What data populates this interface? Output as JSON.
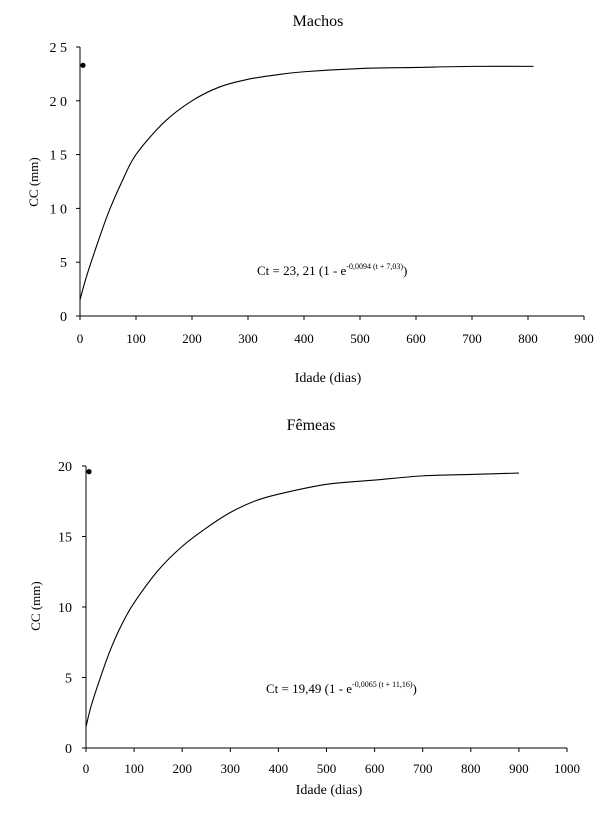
{
  "chart_data": [
    {
      "type": "line",
      "title": "Machos",
      "xlabel": "Idade (dias)",
      "ylabel": "CC (mm)",
      "xlim": [
        0,
        900
      ],
      "ylim": [
        0,
        25
      ],
      "x_ticks": [
        0,
        100,
        200,
        300,
        400,
        500,
        600,
        700,
        800,
        900
      ],
      "y_ticks": [
        0,
        5,
        10,
        15,
        20,
        25
      ],
      "x_tick_labels": [
        "0",
        "100",
        "200",
        "300",
        "400",
        "500",
        "600",
        "700",
        "800",
        "900"
      ],
      "y_tick_labels": [
        "0",
        "5",
        "1 0",
        "1 5",
        "2 0",
        "2 5"
      ],
      "grid": false,
      "series": [
        {
          "x": [
            0,
            10,
            25,
            50,
            75,
            100,
            150,
            200,
            250,
            300,
            350,
            400,
            500,
            600,
            700,
            810
          ],
          "y": [
            1.5,
            3.4,
            5.8,
            9.5,
            12.5,
            15.0,
            18.0,
            20.0,
            21.3,
            22.0,
            22.4,
            22.7,
            23.0,
            23.1,
            23.2,
            23.2
          ]
        }
      ],
      "points": [
        {
          "x": 0,
          "y": 23.3
        }
      ],
      "equation": {
        "main": "Ct = 23, 21 (1 - e",
        "superscript": "-0,0094 (t + 7,03)",
        "close": ")"
      }
    },
    {
      "type": "line",
      "title": "Fêmeas",
      "xlabel": "Idade (dias)",
      "ylabel": "CC (mm)",
      "xlim": [
        0,
        1000
      ],
      "ylim": [
        0,
        20
      ],
      "x_ticks": [
        0,
        100,
        200,
        300,
        400,
        500,
        600,
        700,
        800,
        900,
        1000
      ],
      "y_ticks": [
        0,
        5,
        10,
        15,
        20
      ],
      "x_tick_labels": [
        "0",
        "100",
        "200",
        "300",
        "400",
        "500",
        "600",
        "700",
        "800",
        "900",
        "1000"
      ],
      "y_tick_labels": [
        "0",
        "5",
        "10",
        "15",
        "20"
      ],
      "grid": false,
      "series": [
        {
          "x": [
            0,
            10,
            25,
            50,
            75,
            100,
            150,
            200,
            250,
            300,
            350,
            400,
            500,
            600,
            700,
            800,
            900
          ],
          "y": [
            1.5,
            2.9,
            4.5,
            6.9,
            8.8,
            10.3,
            12.6,
            14.3,
            15.6,
            16.7,
            17.5,
            18.0,
            18.7,
            19.0,
            19.3,
            19.4,
            19.5
          ]
        }
      ],
      "points": [
        {
          "x": 0,
          "y": 19.6
        }
      ],
      "equation": {
        "main": "Ct = 19,49 (1 - e",
        "superscript": "-0,0065 (t + 11,16)",
        "close": ")"
      }
    }
  ]
}
